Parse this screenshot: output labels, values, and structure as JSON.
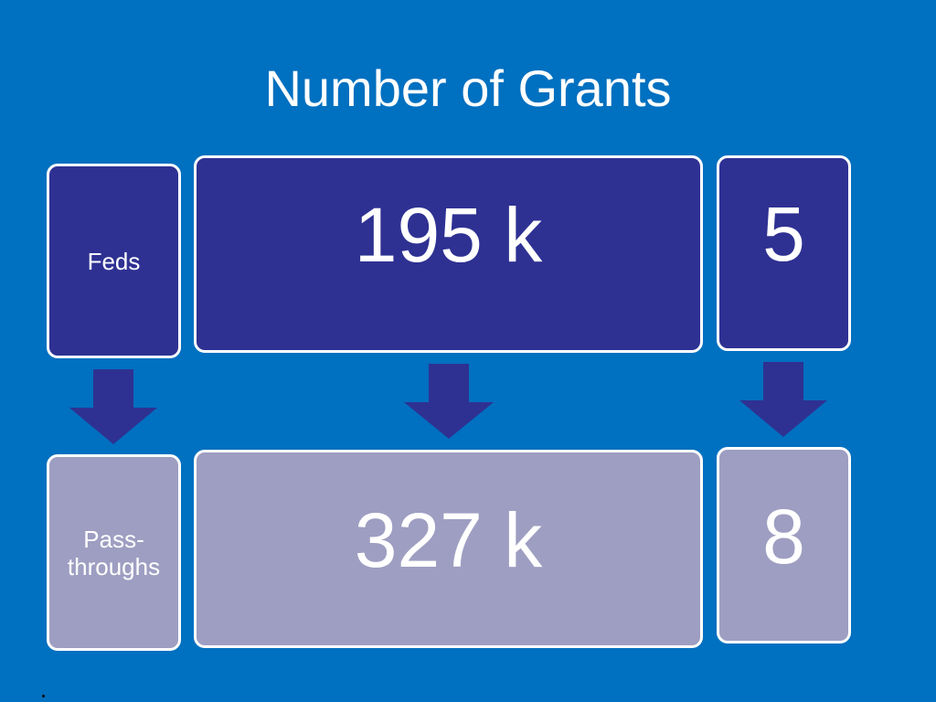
{
  "slide": {
    "title": "Number of Grants"
  },
  "top_row": {
    "label": "Feds",
    "value_large": "195 k",
    "value_small": "5"
  },
  "bottom_row": {
    "label_line1": "Pass-",
    "label_line2": "throughs",
    "value_large": "327 k",
    "value_small": "8"
  },
  "colors": {
    "background": "#0070c0",
    "dark_box": "#2e3192",
    "light_box": "#9e9ec2",
    "arrow": "#2e3192",
    "text": "#ffffff"
  },
  "icons": {
    "arrow": "arrow-down-icon"
  }
}
